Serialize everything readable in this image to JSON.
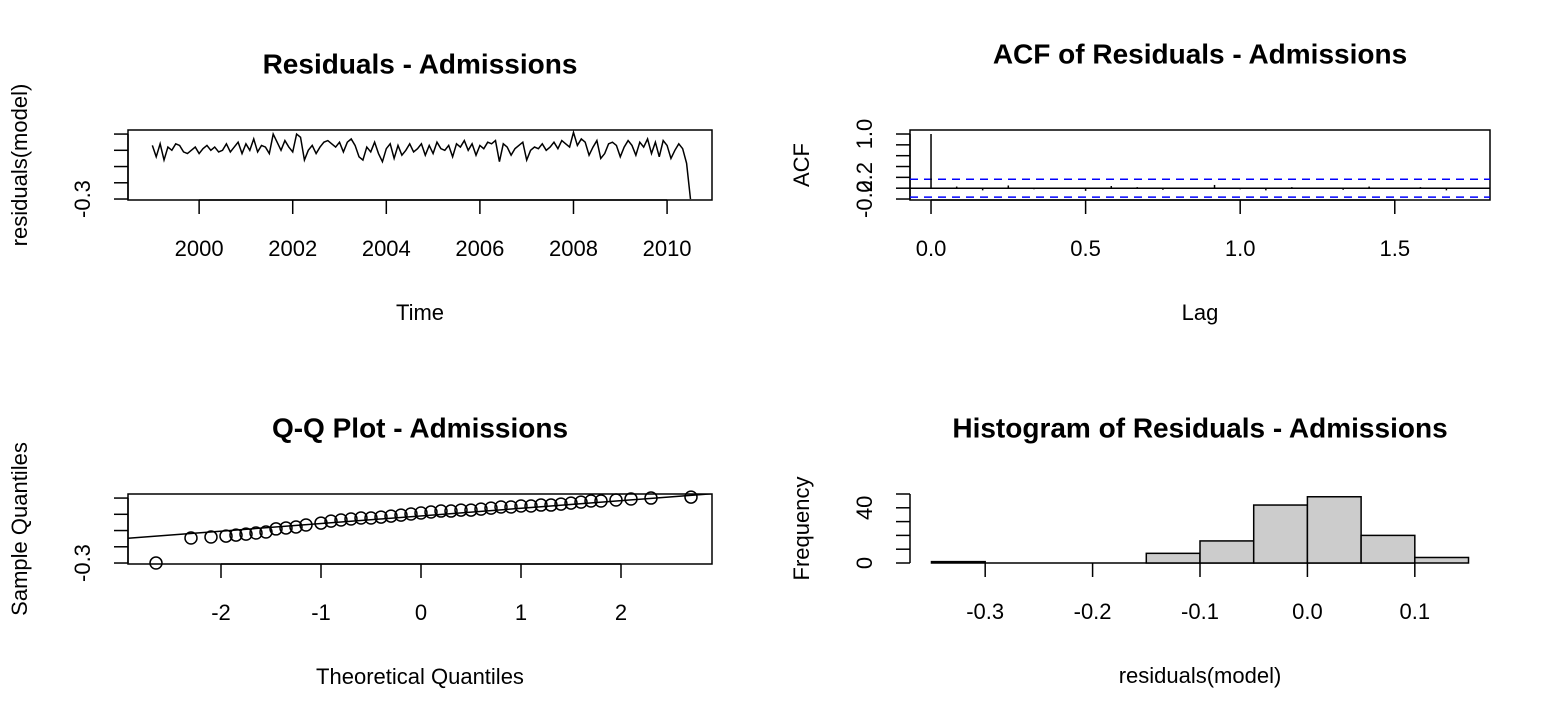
{
  "chart_data": [
    {
      "type": "line",
      "title": "Residuals - Admissions",
      "xlabel": "Time",
      "ylabel": "residuals(model)",
      "color": "#000000",
      "box": true,
      "xlim": [
        1998.48,
        2010.96
      ],
      "ylim": [
        -0.306,
        0.125
      ],
      "xticks": [
        2000,
        2002,
        2004,
        2006,
        2008,
        2010
      ],
      "yticks": [
        -0.3,
        {
          "value": -0.2,
          "label": null
        },
        {
          "value": -0.1,
          "label": null
        },
        {
          "value": 0,
          "label": null
        },
        {
          "value": 0.1,
          "label": null
        }
      ],
      "x": [
        1999,
        1999.083,
        1999.167,
        1999.25,
        1999.333,
        1999.417,
        1999.5,
        1999.583,
        1999.667,
        1999.75,
        1999.833,
        1999.917,
        2000,
        2000.083,
        2000.167,
        2000.25,
        2000.333,
        2000.417,
        2000.5,
        2000.583,
        2000.667,
        2000.75,
        2000.833,
        2000.917,
        2001,
        2001.083,
        2001.167,
        2001.25,
        2001.333,
        2001.417,
        2001.5,
        2001.583,
        2001.667,
        2001.75,
        2001.833,
        2001.917,
        2002,
        2002.083,
        2002.167,
        2002.25,
        2002.333,
        2002.417,
        2002.5,
        2002.583,
        2002.667,
        2002.75,
        2002.833,
        2002.917,
        2003,
        2003.083,
        2003.167,
        2003.25,
        2003.333,
        2003.417,
        2003.5,
        2003.583,
        2003.667,
        2003.75,
        2003.833,
        2003.917,
        2004,
        2004.083,
        2004.167,
        2004.25,
        2004.333,
        2004.417,
        2004.5,
        2004.583,
        2004.667,
        2004.75,
        2004.833,
        2004.917,
        2005,
        2005.083,
        2005.167,
        2005.25,
        2005.333,
        2005.417,
        2005.5,
        2005.583,
        2005.667,
        2005.75,
        2005.833,
        2005.917,
        2006,
        2006.083,
        2006.167,
        2006.25,
        2006.333,
        2006.417,
        2006.5,
        2006.583,
        2006.667,
        2006.75,
        2006.833,
        2006.917,
        2007,
        2007.083,
        2007.167,
        2007.25,
        2007.333,
        2007.417,
        2007.5,
        2007.583,
        2007.667,
        2007.75,
        2007.833,
        2007.917,
        2008,
        2008.083,
        2008.167,
        2008.25,
        2008.333,
        2008.417,
        2008.5,
        2008.583,
        2008.667,
        2008.75,
        2008.833,
        2008.917,
        2009,
        2009.083,
        2009.167,
        2009.25,
        2009.333,
        2009.417,
        2009.5,
        2009.583,
        2009.667,
        2009.75,
        2009.833,
        2009.917,
        2010,
        2010.083,
        2010.167,
        2010.25,
        2010.333,
        2010.417,
        2010.5
      ],
      "values": [
        0.03,
        -0.04,
        0.04,
        -0.06,
        0.02,
        0.0,
        0.04,
        0.03,
        -0.01,
        -0.02,
        0.0,
        0.02,
        -0.02,
        0.01,
        0.03,
        0.0,
        0.02,
        -0.01,
        0.0,
        0.04,
        -0.01,
        0.02,
        0.05,
        -0.02,
        0.04,
        0.0,
        0.07,
        -0.01,
        0.03,
        0.02,
        -0.02,
        0.1,
        0.05,
        0.0,
        0.06,
        0.02,
        -0.01,
        0.1,
        0.08,
        -0.06,
        0.0,
        0.03,
        -0.02,
        0.02,
        0.05,
        0.06,
        0.04,
        0.02,
        0.05,
        -0.01,
        0.05,
        0.07,
        0.03,
        -0.04,
        -0.06,
        0.02,
        -0.01,
        0.05,
        -0.02,
        -0.07,
        0.01,
        0.04,
        -0.05,
        0.03,
        -0.03,
        0.0,
        0.04,
        -0.01,
        0.01,
        0.04,
        -0.03,
        0.03,
        -0.02,
        0.05,
        0.01,
        0.0,
        0.03,
        -0.04,
        0.04,
        0.02,
        0.06,
        0.0,
        0.04,
        -0.03,
        0.03,
        0.01,
        0.05,
        0.04,
        0.06,
        -0.07,
        0.04,
        0.02,
        -0.03,
        0.01,
        0.03,
        0.05,
        -0.06,
        0.0,
        0.02,
        0.01,
        0.04,
        0.0,
        0.02,
        0.05,
        0.01,
        0.06,
        0.04,
        0.02,
        0.11,
        0.03,
        0.07,
        0.05,
        -0.03,
        0.02,
        0.06,
        -0.05,
        -0.02,
        0.04,
        0.05,
        0.03,
        -0.04,
        0.02,
        0.06,
        0.03,
        -0.03,
        0.05,
        0.02,
        0.07,
        -0.02,
        0.05,
        -0.04,
        0.06,
        0.03,
        -0.05,
        0.0,
        0.04,
        0.01,
        -0.08,
        -0.3
      ]
    },
    {
      "type": "acf",
      "title": "ACF of Residuals - Admissions",
      "xlabel": "Lag",
      "ylabel": "ACF",
      "color": "#000000",
      "box": true,
      "xlim": [
        -0.068,
        1.808
      ],
      "ylim": [
        -0.218,
        1.074
      ],
      "xticks": [
        {
          "value": 0,
          "label": "0.0"
        },
        0.5,
        {
          "value": 1,
          "label": "1.0"
        },
        1.5
      ],
      "yticks": [
        -0.2,
        {
          "value": 0,
          "label": null
        },
        0.2,
        {
          "value": 0.4,
          "label": null
        },
        {
          "value": 0.6,
          "label": null
        },
        {
          "value": 0.8,
          "label": null
        },
        {
          "value": 1,
          "label": "1.0"
        }
      ],
      "x": [
        0,
        0.083,
        0.167,
        0.25,
        0.333,
        0.417,
        0.5,
        0.583,
        0.667,
        0.75,
        0.833,
        0.917,
        1,
        1.083,
        1.167,
        1.25,
        1.333,
        1.417,
        1.5,
        1.583,
        1.667,
        1.75
      ],
      "values": [
        1,
        0.03,
        -0.04,
        0.05,
        -0.02,
        0.01,
        -0.05,
        0.04,
        0.02,
        -0.03,
        0.01,
        0.06,
        -0.02,
        -0.04,
        0.02,
        0.01,
        -0.03,
        0.03,
        -0.01,
        0.02,
        -0.04,
        0.01
      ],
      "ci": [
        0.166,
        -0.166
      ],
      "ci_color": "#0000ff"
    },
    {
      "type": "scatter",
      "title": "Q-Q Plot - Admissions",
      "xlabel": "Theoretical Quantiles",
      "ylabel": "Sample Quantiles",
      "color": "#000000",
      "box": true,
      "xlim": [
        -2.93,
        2.91
      ],
      "ylim": [
        -0.306,
        0.125
      ],
      "xticks": [
        -2,
        -1,
        0,
        1,
        2
      ],
      "yticks": [
        -0.3,
        {
          "value": -0.2,
          "label": null
        },
        {
          "value": -0.1,
          "label": null
        },
        {
          "value": 0,
          "label": null
        },
        {
          "value": 0.1,
          "label": null
        }
      ],
      "x": [
        -2.65,
        -2.3,
        -2.1,
        -1.95,
        -1.85,
        -1.75,
        -1.65,
        -1.55,
        -1.45,
        -1.35,
        -1.25,
        -1.15,
        -1.0,
        -0.9,
        -0.8,
        -0.7,
        -0.6,
        -0.5,
        -0.4,
        -0.3,
        -0.2,
        -0.1,
        0,
        0.1,
        0.2,
        0.3,
        0.4,
        0.5,
        0.6,
        0.7,
        0.8,
        0.9,
        1.0,
        1.1,
        1.2,
        1.3,
        1.4,
        1.5,
        1.6,
        1.7,
        1.8,
        1.95,
        2.1,
        2.3,
        2.7
      ],
      "values": [
        -0.3,
        -0.146,
        -0.14,
        -0.134,
        -0.128,
        -0.122,
        -0.115,
        -0.109,
        -0.09,
        -0.084,
        -0.078,
        -0.066,
        -0.054,
        -0.042,
        -0.035,
        -0.029,
        -0.023,
        -0.023,
        -0.017,
        -0.011,
        -0.005,
        0.002,
        0.008,
        0.014,
        0.02,
        0.02,
        0.026,
        0.026,
        0.032,
        0.038,
        0.045,
        0.045,
        0.051,
        0.051,
        0.057,
        0.057,
        0.063,
        0.069,
        0.075,
        0.082,
        0.082,
        0.088,
        0.094,
        0.1,
        0.106
      ],
      "line": {
        "intercept": -0.01,
        "slope": 0.047
      }
    },
    {
      "type": "histogram",
      "title": "Histogram of Residuals - Admissions",
      "xlabel": "residuals(model)",
      "ylabel": "Frequency",
      "color": "#cccccc",
      "box": false,
      "xlim": [
        -0.37,
        0.17
      ],
      "ylim": [
        0,
        50
      ],
      "xticks": [
        -0.3,
        -0.2,
        -0.1,
        {
          "value": 0,
          "label": "0.0"
        },
        0.1
      ],
      "yticks": [
        0,
        {
          "value": 10,
          "label": null
        },
        {
          "value": 20,
          "label": null
        },
        {
          "value": 30,
          "label": null
        },
        40,
        {
          "value": 50,
          "label": null
        }
      ],
      "bins": [
        -0.35,
        -0.3,
        -0.25,
        -0.2,
        -0.15,
        -0.1,
        -0.05,
        0,
        0.05,
        0.1,
        0.15
      ],
      "values": [
        1,
        0,
        0,
        0,
        7,
        16,
        42,
        48,
        20,
        4
      ]
    }
  ]
}
